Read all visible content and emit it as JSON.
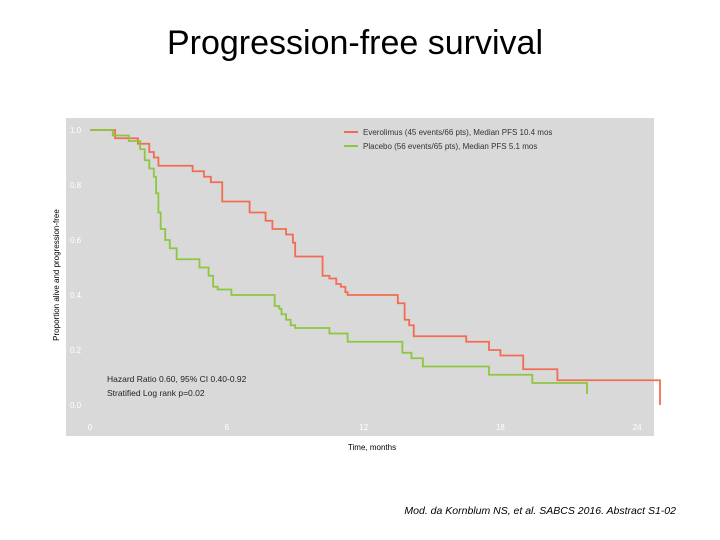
{
  "title": "Progression-free survival",
  "citation": "Mod. da Kornblum NS, et al. SABCS 2016. Abstract S1-02",
  "colors": {
    "plot_bg": "#d9d9d9",
    "everolimus": "#f26c52",
    "placebo": "#8dc63f"
  },
  "chart_data": {
    "type": "line",
    "xlabel": "Time, months",
    "ylabel": "Proportion alive and progression-free",
    "xlim": [
      0,
      25
    ],
    "ylim": [
      0,
      1.0
    ],
    "xticks": [
      0,
      6,
      12,
      18,
      24
    ],
    "yticks": [
      0.0,
      0.2,
      0.4,
      0.6,
      0.8,
      1.0
    ],
    "grid": false,
    "legend_position": "top-right",
    "series": [
      {
        "name": "Everolimus (45 events/66 pts), Median PFS 10.4 mos",
        "color": "#f26c52",
        "x": [
          0,
          1.1,
          2.1,
          2.6,
          2.8,
          3.0,
          4.5,
          5.0,
          5.3,
          5.8,
          7.0,
          7.7,
          8.0,
          8.6,
          8.9,
          9.0,
          10.2,
          10.5,
          10.8,
          11.0,
          11.2,
          11.3,
          13.5,
          13.8,
          14.0,
          14.2,
          16.5,
          17.5,
          18.0,
          19.0,
          20.5,
          25.0
        ],
        "y": [
          1.0,
          0.97,
          0.95,
          0.92,
          0.9,
          0.87,
          0.85,
          0.83,
          0.81,
          0.74,
          0.7,
          0.67,
          0.64,
          0.62,
          0.59,
          0.54,
          0.47,
          0.46,
          0.44,
          0.43,
          0.41,
          0.4,
          0.37,
          0.31,
          0.29,
          0.25,
          0.23,
          0.2,
          0.18,
          0.13,
          0.09,
          0.0
        ]
      },
      {
        "name": "Placebo (56 events/65 pts), Median PFS 5.1 mos",
        "color": "#8dc63f",
        "x": [
          0,
          1.0,
          1.7,
          2.2,
          2.4,
          2.6,
          2.8,
          2.9,
          3.0,
          3.1,
          3.3,
          3.5,
          3.8,
          4.8,
          5.2,
          5.4,
          5.6,
          6.2,
          8.1,
          8.3,
          8.4,
          8.6,
          8.8,
          9.0,
          10.5,
          11.3,
          13.7,
          14.1,
          14.6,
          17.5,
          19.4,
          21.8
        ],
        "y": [
          1.0,
          0.98,
          0.96,
          0.93,
          0.89,
          0.86,
          0.83,
          0.77,
          0.7,
          0.64,
          0.6,
          0.57,
          0.53,
          0.5,
          0.47,
          0.43,
          0.42,
          0.4,
          0.36,
          0.35,
          0.33,
          0.31,
          0.29,
          0.28,
          0.26,
          0.23,
          0.19,
          0.17,
          0.14,
          0.11,
          0.08,
          0.04
        ]
      }
    ],
    "annotations": [
      "Hazard Ratio 0.60, 95% CI 0.40-0.92",
      "Stratified Log rank p=0.02"
    ]
  }
}
